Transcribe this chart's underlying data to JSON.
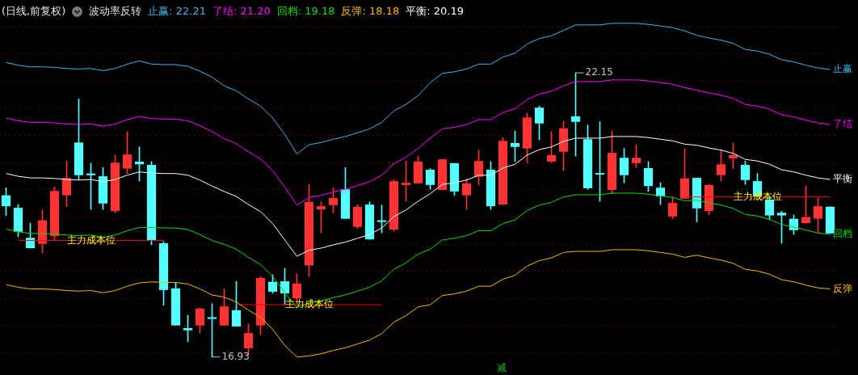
{
  "chart_data": {
    "type": "candlestick",
    "title": "(日线,前复权)",
    "subtitle": "波动率反转",
    "legend": "top left",
    "grid": "y",
    "tick_labels": false,
    "categories": [
      null,
      null,
      null,
      null,
      null,
      null,
      null,
      null,
      null,
      null,
      null,
      null,
      null,
      null,
      null,
      null,
      null,
      null,
      null,
      null,
      null,
      null,
      null,
      null,
      null,
      null,
      null,
      null,
      null,
      null,
      null,
      null,
      null,
      null,
      null,
      null,
      null,
      null,
      null,
      null,
      null,
      null,
      null,
      null,
      null,
      null,
      null,
      null,
      null,
      null,
      null,
      null,
      null,
      null,
      null,
      null,
      null,
      null,
      null,
      null,
      null,
      null,
      null,
      null,
      null,
      null,
      null,
      null,
      null
    ],
    "yticks": [
      {
        "value": 17,
        "label": null
      },
      {
        "value": 17.5,
        "label": null
      },
      {
        "value": 18,
        "label": null
      },
      {
        "value": 18.5,
        "label": null
      },
      {
        "value": 19,
        "label": null
      },
      {
        "value": 19.5,
        "label": null
      },
      {
        "value": 20,
        "label": null
      },
      {
        "value": 20.5,
        "label": null
      },
      {
        "value": 21,
        "label": null
      },
      {
        "value": 21.5,
        "label": null
      },
      {
        "value": 22,
        "label": null
      },
      {
        "value": 22.5,
        "label": null
      },
      {
        "value": 23,
        "label": null
      }
    ],
    "ohlc": [
      [
        19.9,
        20.04,
        19.53,
        19.7
      ],
      [
        19.67,
        19.73,
        19.14,
        19.23
      ],
      [
        19.12,
        19.39,
        18.93,
        18.93
      ],
      [
        19.01,
        19.63,
        18.84,
        19.44
      ],
      [
        19.15,
        20.06,
        19.07,
        19.98
      ],
      [
        19.9,
        20.53,
        19.69,
        20.22
      ],
      [
        20.87,
        21.67,
        20.19,
        20.27
      ],
      [
        20.3,
        20.49,
        19.64,
        20.27
      ],
      [
        20.25,
        20.41,
        19.64,
        19.75
      ],
      [
        19.61,
        20.64,
        19.58,
        20.5
      ],
      [
        20.39,
        21.07,
        20.3,
        20.65
      ],
      [
        20.52,
        20.79,
        20.16,
        20.47
      ],
      [
        20.46,
        20.52,
        18.99,
        19.08
      ],
      [
        19.02,
        19.05,
        17.88,
        18.16
      ],
      [
        18.19,
        18.29,
        17.51,
        17.51
      ],
      [
        17.46,
        17.7,
        17.21,
        17.42
      ],
      [
        17.51,
        17.83,
        17.37,
        17.82
      ],
      [
        17.66,
        17.91,
        16.93,
        17.63
      ],
      [
        17.51,
        18.18,
        17.51,
        17.86
      ],
      [
        17.79,
        18.32,
        17.49,
        17.49
      ],
      [
        17.09,
        17.54,
        16.96,
        17.37
      ],
      [
        17.51,
        18.41,
        17.34,
        18.38
      ],
      [
        18.31,
        18.44,
        18.1,
        18.13
      ],
      [
        18.32,
        18.56,
        17.89,
        18.1
      ],
      [
        18.01,
        18.46,
        17.89,
        18.28
      ],
      [
        18.61,
        20.1,
        18.41,
        19.78
      ],
      [
        19.64,
        19.78,
        19.21,
        19.7
      ],
      [
        19.72,
        20.04,
        19.58,
        19.85
      ],
      [
        20.01,
        20.41,
        19.47,
        19.47
      ],
      [
        19.32,
        19.73,
        19.29,
        19.69
      ],
      [
        19.73,
        19.78,
        19.09,
        19.09
      ],
      [
        19.44,
        19.72,
        19.21,
        19.41
      ],
      [
        19.27,
        20.19,
        19.24,
        20.16
      ],
      [
        20.09,
        20.53,
        19.79,
        20.13
      ],
      [
        20.12,
        20.62,
        20.12,
        20.52
      ],
      [
        20.37,
        20.39,
        20.01,
        20.09
      ],
      [
        20.0,
        20.56,
        20.0,
        20.56
      ],
      [
        20.49,
        20.49,
        19.9,
        19.97
      ],
      [
        19.9,
        20.21,
        19.64,
        20.12
      ],
      [
        20.24,
        20.73,
        20.09,
        20.53
      ],
      [
        20.37,
        20.52,
        19.64,
        19.7
      ],
      [
        19.73,
        20.96,
        19.73,
        20.9
      ],
      [
        20.86,
        21.08,
        20.52,
        20.79
      ],
      [
        20.76,
        21.41,
        20.49,
        21.33
      ],
      [
        21.51,
        21.54,
        20.92,
        21.22
      ],
      [
        20.52,
        21.07,
        20.5,
        20.64
      ],
      [
        20.7,
        21.26,
        20.36,
        21.13
      ],
      [
        21.35,
        22.15,
        20.62,
        21.25
      ],
      [
        20.93,
        21.19,
        20.01,
        20.03
      ],
      [
        20.3,
        21.25,
        19.79,
        20.28
      ],
      [
        20.0,
        21.08,
        19.93,
        20.68
      ],
      [
        20.59,
        20.76,
        20.13,
        20.27
      ],
      [
        20.49,
        20.83,
        20.41,
        20.59
      ],
      [
        20.4,
        20.52,
        19.97,
        20.07
      ],
      [
        20.04,
        20.13,
        19.73,
        19.88
      ],
      [
        19.51,
        19.87,
        19.47,
        19.76
      ],
      [
        19.84,
        20.76,
        19.84,
        20.21
      ],
      [
        20.22,
        20.22,
        19.41,
        19.66
      ],
      [
        19.61,
        20.1,
        19.54,
        20.09
      ],
      [
        20.27,
        20.74,
        20.16,
        20.47
      ],
      [
        20.58,
        20.86,
        20.39,
        20.64
      ],
      [
        20.46,
        20.53,
        20.1,
        20.18
      ],
      [
        20.16,
        20.3,
        19.88,
        19.88
      ],
      [
        19.82,
        19.88,
        19.45,
        19.53
      ],
      [
        19.58,
        19.61,
        19.02,
        19.53
      ],
      [
        19.47,
        19.54,
        19.18,
        19.26
      ],
      [
        19.39,
        20.07,
        19.39,
        19.5
      ],
      [
        19.47,
        19.85,
        19.21,
        19.7
      ],
      [
        19.69,
        19.69,
        19.2,
        19.2
      ]
    ],
    "colors": [
      "#54ffff",
      "#54ffff",
      "#54ffff",
      "#ff3333",
      "#ff3333",
      "#ff3333",
      "#54ffff",
      "#54ffff",
      "#54ffff",
      "#ff3333",
      "#ff3333",
      "#54ffff",
      "#54ffff",
      "#54ffff",
      "#54ffff",
      "#54ffff",
      "#ff3333",
      "#54ffff",
      "#ff3333",
      "#54ffff",
      "#ff3333",
      "#ff3333",
      "#54ffff",
      "#54ffff",
      "#ff3333",
      "#ff3333",
      "#ff3333",
      "#ff3333",
      "#54ffff",
      "#ff3333",
      "#54ffff",
      "#54ffff",
      "#ff3333",
      "#ff3333",
      "#ff3333",
      "#54ffff",
      "#ff3333",
      "#54ffff",
      "#ff3333",
      "#ff3333",
      "#54ffff",
      "#ff3333",
      "#54ffff",
      "#ff3333",
      "#54ffff",
      "#ff3333",
      "#ff3333",
      "#54ffff",
      "#54ffff",
      "#54ffff",
      "#ff3333",
      "#54ffff",
      "#ff3333",
      "#54ffff",
      "#54ffff",
      "#ff3333",
      "#ff3333",
      "#54ffff",
      "#ff3333",
      "#ff3333",
      "#ff3333",
      "#54ffff",
      "#54ffff",
      "#54ffff",
      "#54ffff",
      "#54ffff",
      "#ff3333",
      "#ff3333",
      "#54ffff"
    ],
    "series": [
      {
        "name": "止赢",
        "type": "line",
        "color": "#3cb4f0",
        "values": [
          22.34,
          22.29,
          22.26,
          22.26,
          22.25,
          22.23,
          22.22,
          22.23,
          22.19,
          22.23,
          22.31,
          22.37,
          22.31,
          22.3,
          22.3,
          22.27,
          22.18,
          22.07,
          21.91,
          21.82,
          21.67,
          21.54,
          21.32,
          21.02,
          20.66,
          20.83,
          20.87,
          20.93,
          20.98,
          21.05,
          21.12,
          21.24,
          21.45,
          21.57,
          21.73,
          21.97,
          22.14,
          22.17,
          22.22,
          22.31,
          22.31,
          22.44,
          22.51,
          22.68,
          22.78,
          22.83,
          22.93,
          23.03,
          23.03,
          23.03,
          23.06,
          23.06,
          23.06,
          23.04,
          23.01,
          22.98,
          22.92,
          22.84,
          22.79,
          22.75,
          22.69,
          22.58,
          22.55,
          22.49,
          22.39,
          22.35,
          22.29,
          22.24,
          22.21
        ]
      },
      {
        "name": "了结",
        "type": "line",
        "color": "#ff00ff",
        "values": [
          21.32,
          21.27,
          21.24,
          21.24,
          21.23,
          21.21,
          21.2,
          21.21,
          21.17,
          21.21,
          21.29,
          21.35,
          21.31,
          21.3,
          21.3,
          21.27,
          21.18,
          21.07,
          20.94,
          20.85,
          20.7,
          20.57,
          20.35,
          20.05,
          19.72,
          19.86,
          19.9,
          19.96,
          20.01,
          20.08,
          20.15,
          20.27,
          20.48,
          20.6,
          20.76,
          20.95,
          21.12,
          21.15,
          21.2,
          21.29,
          21.29,
          21.42,
          21.49,
          21.66,
          21.76,
          21.81,
          21.91,
          21.99,
          21.99,
          21.99,
          22.02,
          22.02,
          22.02,
          22.0,
          21.97,
          21.94,
          21.88,
          21.83,
          21.78,
          21.74,
          21.68,
          21.57,
          21.54,
          21.48,
          21.38,
          21.34,
          21.28,
          21.23,
          21.2
        ]
      },
      {
        "name": "回档",
        "type": "line",
        "color": "#00e000",
        "values": [
          19.28,
          19.23,
          19.2,
          19.2,
          19.19,
          19.17,
          19.16,
          19.17,
          19.13,
          19.17,
          19.25,
          19.31,
          19.31,
          19.3,
          19.3,
          19.27,
          19.18,
          19.07,
          19.0,
          18.91,
          18.76,
          18.63,
          18.41,
          18.11,
          17.84,
          17.92,
          17.96,
          18.02,
          18.07,
          18.14,
          18.21,
          18.33,
          18.54,
          18.66,
          18.82,
          18.91,
          19.08,
          19.11,
          19.16,
          19.25,
          19.25,
          19.38,
          19.45,
          19.62,
          19.72,
          19.77,
          19.87,
          19.91,
          19.91,
          19.91,
          19.94,
          19.94,
          19.94,
          19.92,
          19.89,
          19.86,
          19.8,
          19.81,
          19.76,
          19.72,
          19.66,
          19.55,
          19.52,
          19.46,
          19.36,
          19.32,
          19.26,
          19.21,
          19.18
        ]
      },
      {
        "name": "反弹",
        "type": "line",
        "color": "#ffb400",
        "values": [
          18.26,
          18.21,
          18.18,
          18.18,
          18.17,
          18.15,
          18.14,
          18.15,
          18.11,
          18.15,
          18.23,
          18.29,
          18.31,
          18.3,
          18.3,
          18.27,
          18.18,
          18.07,
          18.03,
          17.94,
          17.79,
          17.66,
          17.44,
          17.14,
          16.93,
          16.95,
          16.99,
          17.05,
          17.1,
          17.17,
          17.24,
          17.36,
          17.57,
          17.69,
          17.85,
          17.89,
          18.06,
          18.09,
          18.14,
          18.23,
          18.23,
          18.36,
          18.43,
          18.6,
          18.7,
          18.75,
          18.85,
          18.87,
          18.87,
          18.87,
          18.9,
          18.9,
          18.9,
          18.88,
          18.85,
          18.82,
          18.76,
          18.8,
          18.75,
          18.71,
          18.65,
          18.54,
          18.51,
          18.45,
          18.35,
          18.31,
          18.25,
          18.2,
          18.18
        ]
      },
      {
        "name": "平衡",
        "type": "line",
        "color": "#ffffff",
        "values": [
          20.3,
          20.25,
          20.22,
          20.22,
          20.21,
          20.19,
          20.18,
          20.19,
          20.15,
          20.19,
          20.27,
          20.33,
          20.31,
          20.3,
          20.3,
          20.27,
          20.18,
          20.07,
          19.97,
          19.88,
          19.73,
          19.6,
          19.38,
          19.08,
          18.78,
          18.89,
          18.93,
          18.99,
          19.04,
          19.11,
          19.18,
          19.3,
          19.51,
          19.63,
          19.79,
          19.93,
          20.1,
          20.13,
          20.18,
          20.27,
          20.27,
          20.4,
          20.47,
          20.64,
          20.74,
          20.79,
          20.89,
          20.95,
          20.95,
          20.95,
          20.98,
          20.98,
          20.98,
          20.96,
          20.93,
          20.9,
          20.84,
          20.82,
          20.77,
          20.73,
          20.67,
          20.56,
          20.53,
          20.47,
          20.37,
          20.33,
          20.27,
          20.22,
          20.19
        ]
      },
      {
        "name": "主力成本位",
        "type": "step",
        "color": "#ff0000",
        "values": [
          null,
          19.07,
          19.07,
          19.07,
          19.07,
          19.07,
          19.07,
          19.07,
          19.07,
          19.07,
          19.07,
          19.07,
          19.07,
          19.07,
          null,
          null,
          null,
          null,
          null,
          null,
          null,
          null,
          null,
          null,
          null,
          null,
          null,
          null,
          null,
          null,
          null,
          null,
          null,
          null,
          null,
          null,
          null,
          null,
          null,
          null,
          null,
          null,
          null,
          null,
          null,
          null,
          null,
          null,
          null,
          null,
          null,
          null,
          null,
          null,
          null,
          null,
          null,
          null,
          null,
          null,
          null,
          null,
          null,
          null,
          null,
          null,
          null,
          null,
          null
        ]
      },
      {
        "name": "主力成本位",
        "type": "step",
        "color": "#ff0000",
        "values": [
          null,
          null,
          null,
          null,
          null,
          null,
          null,
          null,
          null,
          null,
          null,
          null,
          null,
          null,
          null,
          null,
          null,
          null,
          null,
          17.89,
          17.89,
          17.89,
          17.89,
          17.89,
          17.89,
          17.89,
          17.89,
          17.89,
          17.89,
          17.89,
          17.89,
          17.89,
          null,
          null,
          null,
          null,
          null,
          null,
          null,
          null,
          null,
          null,
          null,
          null,
          null,
          null,
          null,
          null,
          null,
          null,
          null,
          null,
          null,
          null,
          null,
          null,
          null,
          null,
          null,
          null,
          null,
          null,
          null,
          null,
          null,
          null,
          null,
          null,
          null
        ]
      },
      {
        "name": "主力成本位",
        "type": "step",
        "color": "#ff0000",
        "values": [
          null,
          null,
          null,
          null,
          null,
          null,
          null,
          null,
          null,
          null,
          null,
          null,
          null,
          null,
          null,
          null,
          null,
          null,
          null,
          null,
          null,
          null,
          null,
          null,
          null,
          null,
          null,
          null,
          null,
          null,
          null,
          null,
          null,
          null,
          null,
          null,
          null,
          null,
          null,
          null,
          null,
          null,
          null,
          null,
          null,
          null,
          null,
          null,
          null,
          null,
          null,
          null,
          null,
          null,
          null,
          null,
          19.87,
          19.87,
          19.87,
          19.87,
          19.87,
          19.87,
          19.87,
          19.87,
          19.87,
          19.87,
          19.87,
          19.87,
          19.87
        ]
      }
    ],
    "annotations": [
      "22.15",
      "16.93",
      "减",
      ": 22.21",
      ": 21.20",
      ": 19.18",
      ": 18.18",
      ": 20.19"
    ]
  }
}
